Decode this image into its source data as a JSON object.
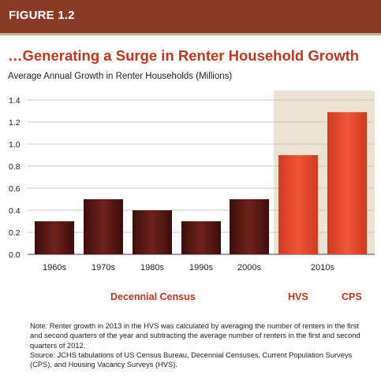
{
  "header": {
    "figure_label": "FIGURE 1.2"
  },
  "title": "…Generating a Surge in Renter Household Growth",
  "subtitle": "Average Annual Growth in Renter Households (Millions)",
  "colors": {
    "banner": "#8a3b24",
    "title": "#c8351f",
    "census_bar": "#5c1a16",
    "survey_bar": "#e0432a",
    "highlight_bg": "#ede3d3"
  },
  "chart_data": {
    "type": "bar",
    "categories": [
      "1960s",
      "1970s",
      "1980s",
      "1990s",
      "2000s",
      "HVS",
      "CPS"
    ],
    "values": [
      0.3,
      0.5,
      0.4,
      0.3,
      0.5,
      0.9,
      1.29
    ],
    "x_tick_labels": [
      "1960s",
      "1970s",
      "1980s",
      "1990s",
      "2000s",
      "2010s"
    ],
    "y_ticks": [
      "0.0",
      "0.2",
      "0.4",
      "0.6",
      "0.8",
      "1.0",
      "1.2",
      "1.4"
    ],
    "ylim": [
      0,
      1.4
    ],
    "grid": "horizontal",
    "group_labels": [
      "Decennial Census",
      "HVS",
      "CPS"
    ],
    "highlighted_period": "2010s"
  },
  "notes": [
    "Note: Renter growth in 2013 in the HVS was calculated by averaging the number of renters in the first and second quarters of the year and subtracting the average number of renters in the first and second quarters of 2012.",
    "Source: JCHS tabulations of US Census Bureau, Decennial Censuses, Current Population Surveys (CPS), and Housing Vacancy Surveys (HVS)."
  ]
}
